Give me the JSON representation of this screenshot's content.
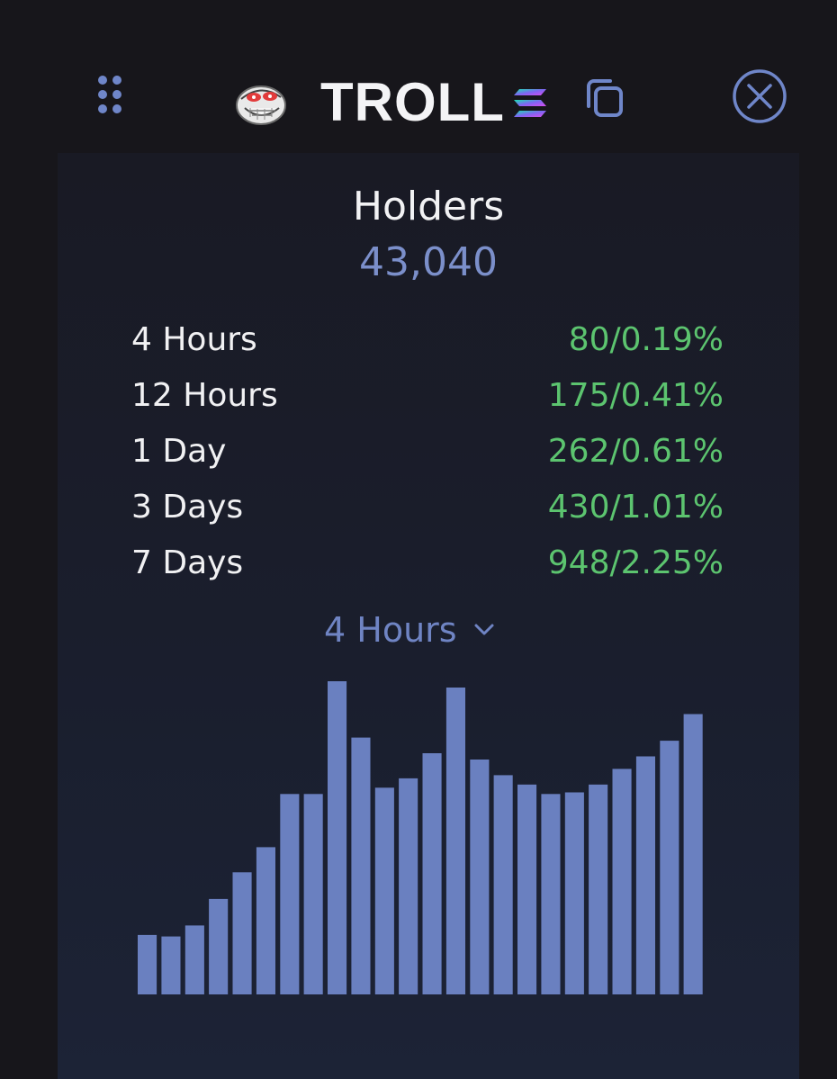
{
  "token": {
    "symbol": "TROLL",
    "avatar_icon": "troll-face-icon",
    "chain_icon": "solana-icon"
  },
  "header": {
    "drag_icon": "drag-handle-icon",
    "copy_icon": "copy-icon",
    "close_icon": "close-icon"
  },
  "holders": {
    "title": "Holders",
    "count": "43,040"
  },
  "stats": [
    {
      "label": "4 Hours",
      "value": "80/0.19%"
    },
    {
      "label": "12 Hours",
      "value": "175/0.41%"
    },
    {
      "label": "1 Day",
      "value": "262/0.61%"
    },
    {
      "label": "3 Days",
      "value": "430/1.01%"
    },
    {
      "label": "7 Days",
      "value": "948/2.25%"
    }
  ],
  "period_select": {
    "selected": "4 Hours"
  },
  "colors": {
    "background": "#17161b",
    "accent": "#6f84c3",
    "positive": "#5cc46f",
    "bar": "#6a80c0"
  },
  "chart_data": {
    "type": "bar",
    "values": [
      19,
      18.5,
      22,
      30.5,
      39,
      47,
      64,
      64,
      100,
      82,
      66,
      69,
      77,
      98,
      75,
      70,
      67,
      64,
      64.5,
      67,
      72,
      76,
      81,
      89.5
    ],
    "ylim": [
      0,
      100
    ],
    "title": "",
    "xlabel": "",
    "ylabel": ""
  }
}
